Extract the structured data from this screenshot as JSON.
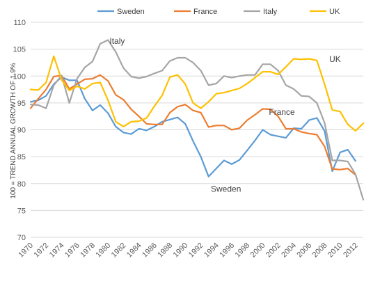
{
  "chart_data": {
    "type": "line",
    "title": "",
    "xlabel": "",
    "ylabel": "100 = TREND ANNUAL GROWTH OF 1.9%",
    "ylim": [
      70,
      110
    ],
    "yticks": [
      70,
      75,
      80,
      85,
      90,
      95,
      100,
      105,
      110
    ],
    "xlim": [
      1970,
      2013
    ],
    "xtick_labels": [
      "1970",
      "1972",
      "1974",
      "1976",
      "1978",
      "1980",
      "1982",
      "1984",
      "1986",
      "1988",
      "1990",
      "1992",
      "1994",
      "1996",
      "1998",
      "2000",
      "2002",
      "2004",
      "2006",
      "2008",
      "2010",
      "2012"
    ],
    "grid": "horizontal",
    "legend_position": "top",
    "colors": {
      "Sweden": "#5b9bd5",
      "France": "#ed7d31",
      "Italy": "#a5a5a5",
      "UK": "#ffc000"
    },
    "x": [
      1970,
      1971,
      1972,
      1973,
      1974,
      1975,
      1976,
      1977,
      1978,
      1979,
      1980,
      1981,
      1982,
      1983,
      1984,
      1985,
      1986,
      1987,
      1988,
      1989,
      1990,
      1991,
      1992,
      1993,
      1994,
      1995,
      1996,
      1997,
      1998,
      1999,
      2000,
      2001,
      2002,
      2003,
      2004,
      2005,
      2006,
      2007,
      2008,
      2009,
      2010,
      2011,
      2012,
      2013
    ],
    "series": [
      {
        "name": "Sweden",
        "values": [
          95.2,
          95.5,
          96.3,
          98.5,
          99.8,
          99.2,
          99.2,
          95.8,
          93.6,
          94.6,
          93.1,
          90.6,
          89.5,
          89.2,
          90.2,
          89.9,
          90.6,
          91.5,
          91.9,
          92.3,
          91.1,
          87.9,
          85.0,
          81.3,
          82.8,
          84.3,
          83.6,
          84.4,
          86.2,
          88.0,
          90.0,
          89.1,
          88.8,
          88.5,
          90.3,
          90.2,
          91.8,
          92.2,
          89.8,
          82.3,
          85.8,
          86.3,
          84.2,
          null
        ]
      },
      {
        "name": "France",
        "values": [
          94.0,
          95.8,
          97.5,
          99.9,
          100.1,
          97.6,
          98.5,
          99.4,
          99.5,
          100.2,
          99.1,
          96.5,
          95.6,
          93.8,
          92.5,
          91.1,
          91.0,
          91.0,
          93.2,
          94.3,
          94.7,
          93.6,
          93.2,
          90.5,
          90.8,
          90.8,
          90.0,
          90.3,
          91.8,
          92.8,
          93.9,
          93.8,
          92.5,
          90.2,
          90.2,
          89.6,
          89.3,
          89.1,
          86.9,
          82.7,
          82.6,
          82.8,
          81.6,
          null
        ]
      },
      {
        "name": "Italy",
        "values": [
          94.7,
          94.6,
          94.0,
          98.3,
          100.1,
          95.0,
          99.5,
          101.6,
          102.7,
          106.0,
          106.7,
          104.5,
          101.5,
          99.9,
          99.6,
          99.9,
          100.5,
          101.0,
          102.8,
          103.4,
          103.4,
          102.5,
          101.0,
          98.3,
          98.6,
          100.0,
          99.7,
          100.0,
          100.2,
          100.2,
          102.2,
          102.2,
          101.0,
          98.3,
          97.6,
          96.3,
          96.2,
          95.0,
          91.3,
          84.3,
          84.3,
          84.1,
          81.7,
          77.0
        ]
      },
      {
        "name": "UK",
        "values": [
          97.5,
          97.4,
          98.8,
          103.7,
          99.3,
          97.3,
          98.1,
          97.6,
          98.6,
          98.8,
          95.5,
          91.5,
          90.6,
          91.5,
          91.6,
          92.2,
          94.4,
          96.4,
          99.8,
          100.2,
          98.5,
          95.0,
          94.0,
          95.2,
          96.7,
          96.9,
          97.3,
          97.7,
          98.6,
          99.7,
          100.8,
          100.8,
          100.3,
          101.7,
          103.2,
          103.1,
          103.2,
          102.9,
          98.5,
          93.7,
          93.4,
          91.0,
          89.8,
          91.2
        ]
      }
    ],
    "annotations": [
      {
        "text": "Italy",
        "x": 1980.2,
        "y": 106.0
      },
      {
        "text": "UK",
        "x": 2008.6,
        "y": 102.6
      },
      {
        "text": "France",
        "x": 2000.8,
        "y": 92.8
      },
      {
        "text": "Sweden",
        "x": 1993.3,
        "y": 78.5
      }
    ]
  }
}
